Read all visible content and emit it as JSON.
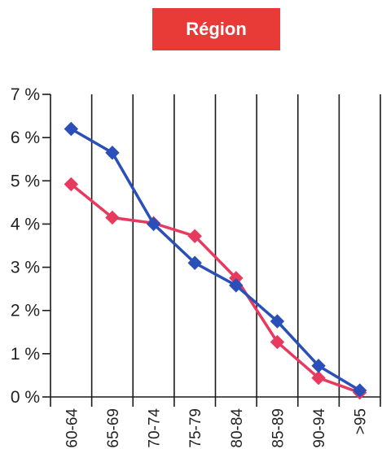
{
  "chart_data": {
    "type": "line",
    "title": "Région",
    "xlabel": "",
    "ylabel": "",
    "categories": [
      "60-64",
      "65-69",
      "70-74",
      "75-79",
      "80-84",
      "85-89",
      "90-94",
      ">95"
    ],
    "y_tick_labels": [
      "0 %",
      "1 %",
      "2 %",
      "3 %",
      "4 %",
      "5 %",
      "6 %",
      "7 %"
    ],
    "ylim": [
      0,
      7
    ],
    "grid": "vertical",
    "legend": "none",
    "series": [
      {
        "color": "#2a4fb8",
        "marker": "diamond",
        "values": [
          6.2,
          5.65,
          4.0,
          3.1,
          2.58,
          1.75,
          0.72,
          0.15
        ]
      },
      {
        "color": "#e8395f",
        "marker": "diamond",
        "values": [
          4.92,
          4.15,
          4.02,
          3.72,
          2.75,
          1.27,
          0.44,
          0.1
        ]
      }
    ]
  },
  "colors": {
    "title_background": "#e83a37",
    "title_text": "#ffffff"
  }
}
